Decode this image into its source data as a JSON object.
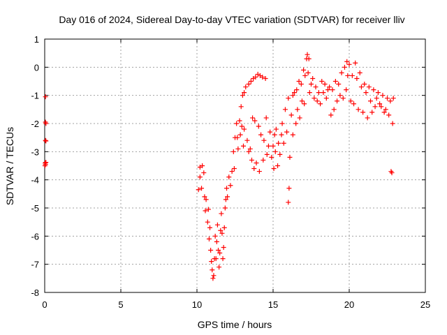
{
  "chart_data": {
    "type": "scatter",
    "title": "Day 016 of 2024, Sidereal Day-to-day VTEC variation (SDTVAR) for receiver lliv",
    "xlabel": "GPS time / hours",
    "ylabel": "SDTVAR / TECUs",
    "xlim": [
      0,
      25
    ],
    "ylim": [
      -8,
      1
    ],
    "x_ticks": [
      "0",
      "5",
      "10",
      "15",
      "20",
      "25"
    ],
    "y_ticks": [
      "1",
      "0",
      "-1",
      "-2",
      "-3",
      "-4",
      "-5",
      "-6",
      "-7",
      "-8"
    ],
    "grid": true,
    "marker": "+",
    "color": "#ff0000",
    "series": [
      {
        "points": [
          [
            0.05,
            -1.05
          ],
          [
            0.05,
            -1.95
          ],
          [
            0.08,
            -2.0
          ],
          [
            0.05,
            -2.6
          ],
          [
            0.08,
            -2.62
          ],
          [
            0.03,
            -3.4
          ],
          [
            0.05,
            -3.45
          ],
          [
            0.08,
            -3.38
          ],
          [
            0.02,
            -3.5
          ],
          [
            10.1,
            -4.35
          ],
          [
            10.2,
            -3.55
          ],
          [
            10.2,
            -3.9
          ],
          [
            10.3,
            -4.3
          ],
          [
            10.35,
            -3.5
          ],
          [
            10.45,
            -3.75
          ],
          [
            10.5,
            -4.6
          ],
          [
            10.55,
            -5.1
          ],
          [
            10.6,
            -4.7
          ],
          [
            10.7,
            -5.5
          ],
          [
            10.75,
            -5.05
          ],
          [
            10.8,
            -6.1
          ],
          [
            10.85,
            -5.7
          ],
          [
            10.9,
            -6.5
          ],
          [
            10.95,
            -6.9
          ],
          [
            11.0,
            -7.2
          ],
          [
            11.05,
            -7.5
          ],
          [
            11.1,
            -7.4
          ],
          [
            11.15,
            -6.8
          ],
          [
            11.2,
            -6.0
          ],
          [
            11.25,
            -6.8
          ],
          [
            11.3,
            -6.2
          ],
          [
            11.35,
            -5.6
          ],
          [
            11.4,
            -6.5
          ],
          [
            11.45,
            -7.1
          ],
          [
            11.5,
            -6.6
          ],
          [
            11.55,
            -5.8
          ],
          [
            11.6,
            -5.2
          ],
          [
            11.65,
            -5.9
          ],
          [
            11.7,
            -6.8
          ],
          [
            11.75,
            -6.4
          ],
          [
            11.8,
            -5.7
          ],
          [
            11.85,
            -5.0
          ],
          [
            11.9,
            -4.7
          ],
          [
            11.95,
            -4.3
          ],
          [
            12.0,
            -4.6
          ],
          [
            12.1,
            -3.9
          ],
          [
            12.2,
            -4.2
          ],
          [
            12.3,
            -3.7
          ],
          [
            12.4,
            -3.0
          ],
          [
            12.45,
            -3.6
          ],
          [
            12.5,
            -2.5
          ],
          [
            12.6,
            -2.0
          ],
          [
            12.65,
            -2.5
          ],
          [
            12.7,
            -2.9
          ],
          [
            12.8,
            -1.9
          ],
          [
            12.85,
            -2.4
          ],
          [
            12.9,
            -1.4
          ],
          [
            12.95,
            -2.1
          ],
          [
            13.0,
            -1.0
          ],
          [
            13.05,
            -2.8
          ],
          [
            13.1,
            -2.2
          ],
          [
            13.1,
            -0.9
          ],
          [
            13.2,
            -0.7
          ],
          [
            13.3,
            -2.6
          ],
          [
            13.4,
            -3.0
          ],
          [
            13.4,
            -0.6
          ],
          [
            13.5,
            -2.9
          ],
          [
            13.55,
            -0.5
          ],
          [
            13.6,
            -3.3
          ],
          [
            13.65,
            -1.8
          ],
          [
            13.7,
            -0.4
          ],
          [
            13.75,
            -3.6
          ],
          [
            13.8,
            -1.9
          ],
          [
            13.85,
            -0.35
          ],
          [
            13.9,
            -3.4
          ],
          [
            14.0,
            -0.25
          ],
          [
            14.05,
            -2.1
          ],
          [
            14.1,
            -3.7
          ],
          [
            14.15,
            -0.3
          ],
          [
            14.2,
            -2.4
          ],
          [
            14.3,
            -0.35
          ],
          [
            14.35,
            -3.3
          ],
          [
            14.4,
            -2.6
          ],
          [
            14.5,
            -0.4
          ],
          [
            14.55,
            -1.8
          ],
          [
            14.6,
            -3.1
          ],
          [
            14.7,
            -2.8
          ],
          [
            14.8,
            -2.3
          ],
          [
            14.9,
            -3.2
          ],
          [
            15.0,
            -2.8
          ],
          [
            15.05,
            -3.6
          ],
          [
            15.1,
            -2.4
          ],
          [
            15.15,
            -3.0
          ],
          [
            15.2,
            -2.2
          ],
          [
            15.3,
            -3.5
          ],
          [
            15.35,
            -2.7
          ],
          [
            15.45,
            -3.1
          ],
          [
            15.55,
            -2.4
          ],
          [
            15.6,
            -2.0
          ],
          [
            15.7,
            -2.7
          ],
          [
            15.8,
            -1.5
          ],
          [
            15.9,
            -2.3
          ],
          [
            16.0,
            -1.1
          ],
          [
            16.0,
            -4.8
          ],
          [
            16.05,
            -4.3
          ],
          [
            16.1,
            -3.2
          ],
          [
            16.2,
            -1.7
          ],
          [
            16.3,
            -1.0
          ],
          [
            16.3,
            -2.4
          ],
          [
            16.4,
            -0.9
          ],
          [
            16.5,
            -2.0
          ],
          [
            16.55,
            -0.8
          ],
          [
            16.6,
            -1.5
          ],
          [
            16.7,
            -0.5
          ],
          [
            16.75,
            -1.8
          ],
          [
            16.85,
            -0.6
          ],
          [
            16.9,
            -1.2
          ],
          [
            17.0,
            -0.1
          ],
          [
            17.05,
            -1.3
          ],
          [
            17.1,
            -0.3
          ],
          [
            17.2,
            0.3
          ],
          [
            17.25,
            0.45
          ],
          [
            17.3,
            -0.2
          ],
          [
            17.35,
            0.3
          ],
          [
            17.4,
            -0.9
          ],
          [
            17.5,
            -0.6
          ],
          [
            17.6,
            -0.4
          ],
          [
            17.7,
            -1.1
          ],
          [
            17.8,
            -0.7
          ],
          [
            17.9,
            -1.2
          ],
          [
            18.0,
            -0.9
          ],
          [
            18.1,
            -1.3
          ],
          [
            18.2,
            -0.5
          ],
          [
            18.3,
            -0.9
          ],
          [
            18.4,
            -0.6
          ],
          [
            18.5,
            -1.1
          ],
          [
            18.6,
            -0.8
          ],
          [
            18.7,
            -0.7
          ],
          [
            18.8,
            -1.7
          ],
          [
            18.9,
            -0.8
          ],
          [
            19.0,
            -1.5
          ],
          [
            19.1,
            -0.5
          ],
          [
            19.2,
            -1.2
          ],
          [
            19.3,
            -0.6
          ],
          [
            19.4,
            -1.0
          ],
          [
            19.5,
            -0.2
          ],
          [
            19.6,
            -1.1
          ],
          [
            19.7,
            0.0
          ],
          [
            19.8,
            -0.8
          ],
          [
            19.85,
            0.2
          ],
          [
            19.9,
            -0.3
          ],
          [
            20.0,
            0.1
          ],
          [
            20.1,
            -1.2
          ],
          [
            20.2,
            -0.3
          ],
          [
            20.3,
            -1.3
          ],
          [
            20.4,
            0.15
          ],
          [
            20.5,
            -0.4
          ],
          [
            20.6,
            -1.5
          ],
          [
            20.7,
            -0.2
          ],
          [
            20.8,
            -0.7
          ],
          [
            20.9,
            -1.6
          ],
          [
            21.0,
            -0.6
          ],
          [
            21.1,
            -0.9
          ],
          [
            21.2,
            -1.8
          ],
          [
            21.3,
            -0.7
          ],
          [
            21.4,
            -1.2
          ],
          [
            21.5,
            -1.6
          ],
          [
            21.6,
            -0.8
          ],
          [
            21.7,
            -1.4
          ],
          [
            21.8,
            -1.1
          ],
          [
            21.9,
            -0.9
          ],
          [
            22.0,
            -1.3
          ],
          [
            22.1,
            -1.4
          ],
          [
            22.2,
            -1.0
          ],
          [
            22.3,
            -1.6
          ],
          [
            22.4,
            -1.5
          ],
          [
            22.5,
            -1.1
          ],
          [
            22.6,
            -1.7
          ],
          [
            22.7,
            -1.2
          ],
          [
            22.75,
            -3.7
          ],
          [
            22.8,
            -3.75
          ],
          [
            22.85,
            -2.0
          ],
          [
            22.9,
            -1.1
          ]
        ]
      }
    ]
  }
}
